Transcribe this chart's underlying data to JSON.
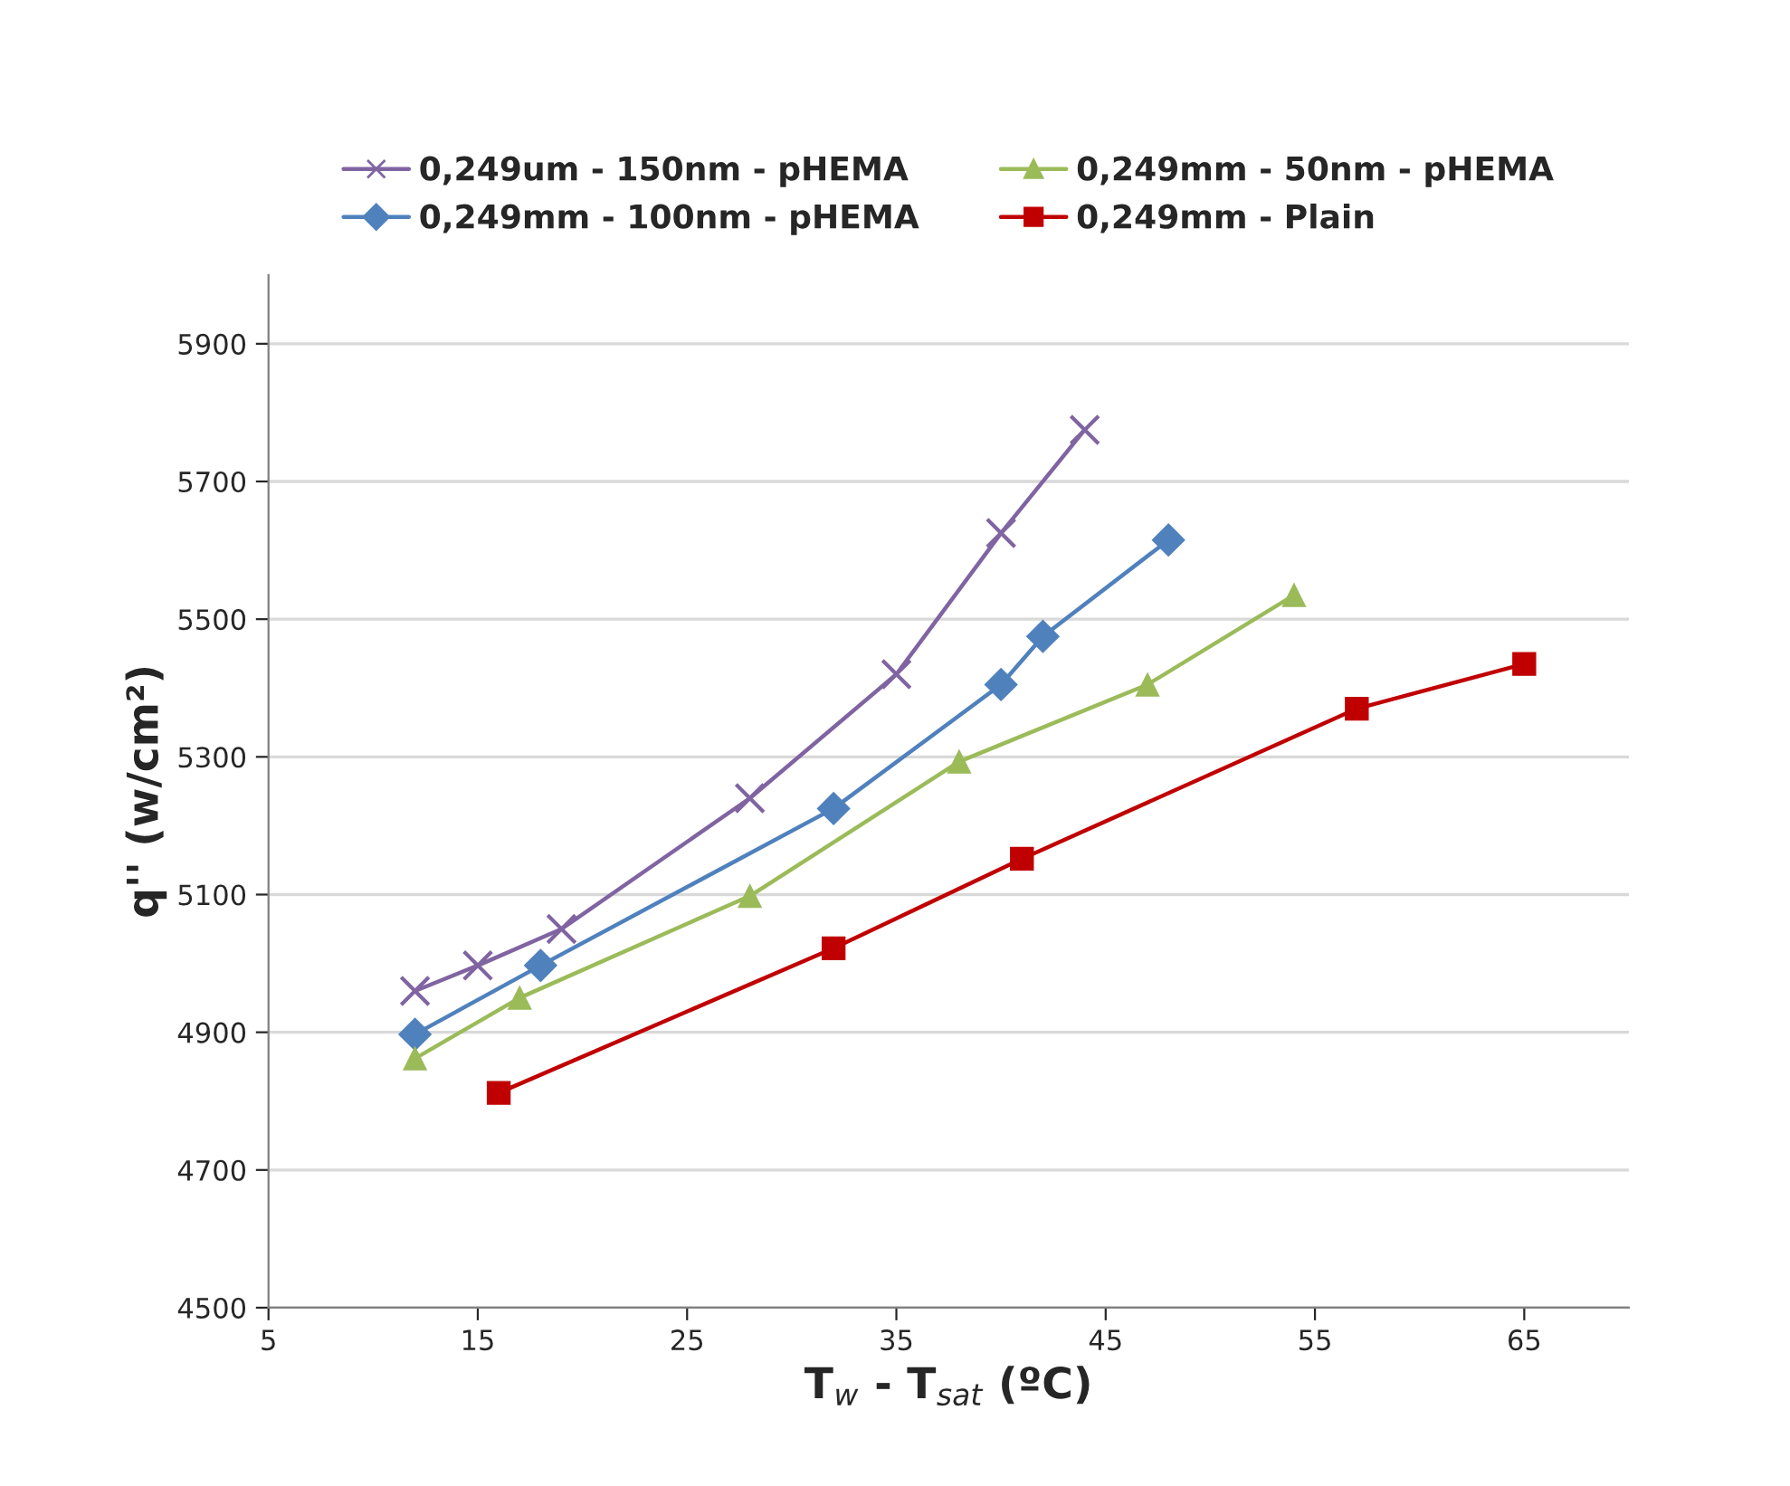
{
  "chart_data": {
    "type": "line",
    "xlabel": "T$_{w}$ - T$_{sat}$ (ºC)",
    "ylabel": "q'' (w/cm²)",
    "xlim": [
      5,
      70
    ],
    "xticks": [
      5,
      15,
      25,
      35,
      45,
      55,
      65
    ],
    "ylim": [
      4500,
      6000
    ],
    "yticks": [
      4500,
      4700,
      4900,
      5100,
      5300,
      5500,
      5700,
      5900
    ],
    "grid": "y",
    "legend": "top",
    "series": [
      {
        "name": "0,249um - 150nm - pHEMA",
        "color": "#8064a2",
        "marker": "cross",
        "x": [
          12,
          15,
          19,
          28,
          35,
          40,
          44
        ],
        "values": [
          4960,
          4997,
          5050,
          5240,
          5420,
          5625,
          5775
        ]
      },
      {
        "name": "0,249mm - 100nm - pHEMA",
        "color": "#4f81bd",
        "marker": "diamond",
        "x": [
          12,
          18,
          32,
          40,
          42,
          48
        ],
        "values": [
          4897,
          4997,
          5225,
          5405,
          5475,
          5615
        ]
      },
      {
        "name": "0,249mm - 50nm - pHEMA",
        "color": "#9bbb59",
        "marker": "triangle",
        "x": [
          12,
          17,
          28,
          38,
          47,
          54
        ],
        "values": [
          4862,
          4950,
          5098,
          5293,
          5405,
          5535
        ]
      },
      {
        "name": "0,249mm - Plain",
        "color": "#c00000",
        "marker": "square",
        "x": [
          16,
          32,
          41,
          57,
          65
        ],
        "values": [
          4812,
          5022,
          5152,
          5370,
          5435
        ]
      }
    ]
  }
}
